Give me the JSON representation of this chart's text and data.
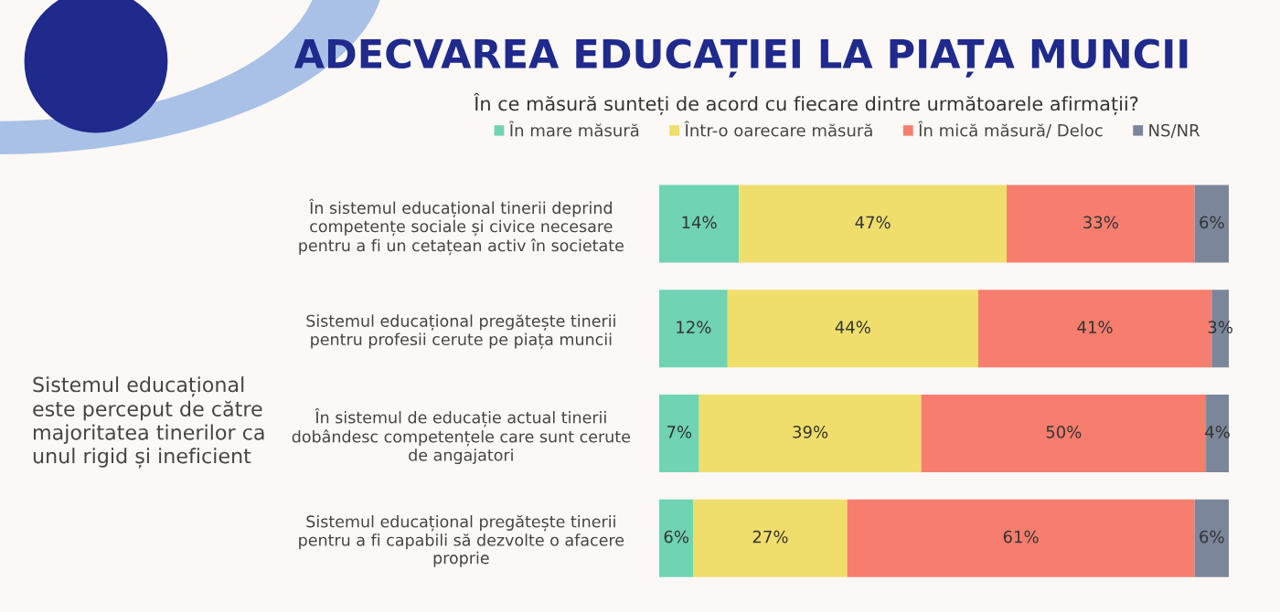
{
  "chart_data": {
    "type": "bar",
    "orientation": "horizontal",
    "stacked": true,
    "legend": "top",
    "grid": false,
    "title": "ADECVAREA EDUCAȚIEI LA PIAȚA MUNCII",
    "subtitle": "În ce măsură sunteți de acord cu fiecare dintre următoarele afirmații?",
    "annotations": [
      "Sistemul educațional\neste perceput de către\nmajoritatea tinerilor ca\nunul rigid și ineficient"
    ],
    "categories": [
      "În sistemul educațional tinerii deprind\ncompetențe sociale și civice necesare\npentru a fi un cetațean activ în societate",
      "Sistemul educațional pregătește tinerii\npentru profesii cerute pe piața muncii",
      "În sistemul de educație actual tinerii\ndobândesc competențele care sunt cerute\nde angajatori",
      "Sistemul educațional pregătește tinerii\npentru a fi capabili să dezvolte o afacere\nproprie"
    ],
    "series": [
      {
        "name": "În mare măsură",
        "color": "#6fd3b4",
        "values": [
          14,
          12,
          7,
          6
        ],
        "value_labels": [
          "14%",
          "12%",
          "7%",
          "6%"
        ]
      },
      {
        "name": "Într-o oarecare măsură",
        "color": "#f0de6c",
        "values": [
          47,
          44,
          39,
          27
        ],
        "value_labels": [
          "47%",
          "44%",
          "39%",
          "27%"
        ]
      },
      {
        "name": "În mică măsură/ Deloc",
        "color": "#f77e6e",
        "values": [
          33,
          41,
          50,
          61
        ],
        "value_labels": [
          "33%",
          "41%",
          "50%",
          "61%"
        ]
      },
      {
        "name": "NS/NR",
        "color": "#7b869a",
        "values": [
          6,
          3,
          4,
          6
        ],
        "value_labels": [
          "6%",
          "3%",
          "4%",
          "6%"
        ]
      }
    ]
  }
}
